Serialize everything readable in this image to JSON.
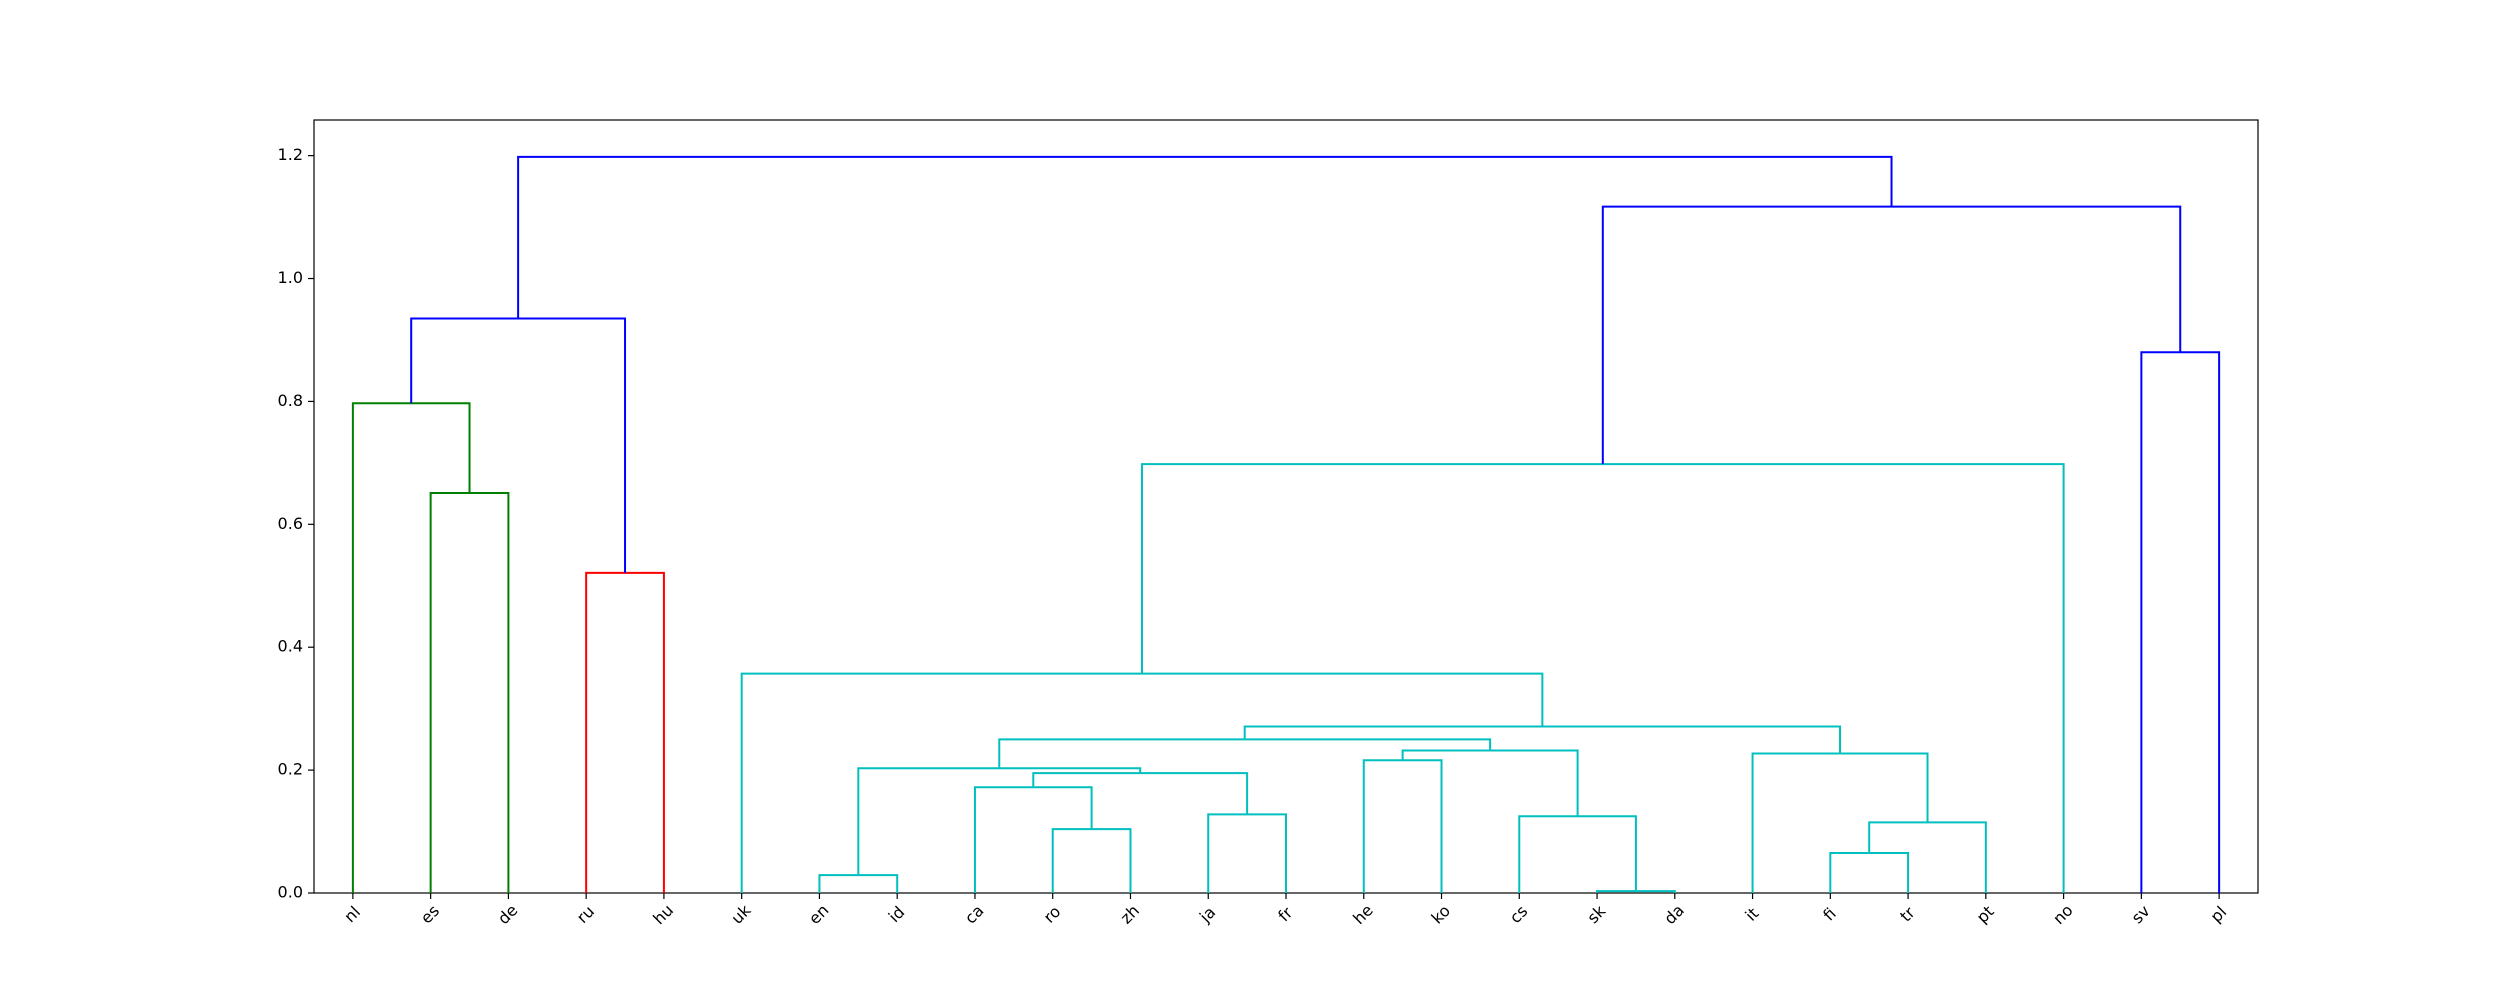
{
  "chart_data": {
    "type": "dendrogram",
    "ylim": [
      0,
      1.258
    ],
    "yticks": [
      {
        "value": 0,
        "label": "0.0"
      },
      {
        "value": 0.2,
        "label": "0.2"
      },
      {
        "value": 0.4,
        "label": "0.4"
      },
      {
        "value": 0.6,
        "label": "0.6"
      },
      {
        "value": 0.8,
        "label": "0.8"
      },
      {
        "value": 1.0,
        "label": "1.0"
      },
      {
        "value": 1.2,
        "label": "1.2"
      }
    ],
    "tree": {
      "height": 1.198,
      "color": "#0000ff",
      "children": [
        {
          "height": 0.935,
          "color": "#0000ff",
          "children": [
            {
              "height": 0.797,
              "color": "#008000",
              "children": [
                "nl",
                {
                  "height": 0.651,
                  "color": "#008000",
                  "children": [
                    "es",
                    "de"
                  ]
                }
              ]
            },
            {
              "height": 0.521,
              "color": "#ff0000",
              "children": [
                "ru",
                "hu"
              ]
            }
          ]
        },
        {
          "height": 1.117,
          "color": "#0000ff",
          "children": [
            {
              "height": 0.698,
              "color": "#00bfbf",
              "children": [
                {
                  "height": 0.357,
                  "color": "#00bfbf",
                  "children": [
                    "uk",
                    {
                      "height": 0.271,
                      "color": "#00bfbf",
                      "children": [
                        {
                          "height": 0.25,
                          "color": "#00bfbf",
                          "children": [
                            {
                              "height": 0.203,
                              "color": "#00bfbf",
                              "children": [
                                {
                                  "height": 0.029,
                                  "color": "#00bfbf",
                                  "children": [
                                    "en",
                                    "id"
                                  ]
                                },
                                {
                                  "height": 0.195,
                                  "color": "#00bfbf",
                                  "children": [
                                    {
                                      "height": 0.172,
                                      "color": "#00bfbf",
                                      "children": [
                                        "ca",
                                        {
                                          "height": 0.104,
                                          "color": "#00bfbf",
                                          "children": [
                                            "ro",
                                            "zh"
                                          ]
                                        }
                                      ]
                                    },
                                    {
                                      "height": 0.128,
                                      "color": "#00bfbf",
                                      "children": [
                                        "ja",
                                        "fr"
                                      ]
                                    }
                                  ]
                                }
                              ]
                            },
                            {
                              "height": 0.232,
                              "color": "#00bfbf",
                              "children": [
                                {
                                  "height": 0.216,
                                  "color": "#00bfbf",
                                  "children": [
                                    "he",
                                    "ko"
                                  ]
                                },
                                {
                                  "height": 0.125,
                                  "color": "#00bfbf",
                                  "children": [
                                    "cs",
                                    {
                                      "height": 0.003,
                                      "color": "#00bfbf",
                                      "children": [
                                        "sk",
                                        "da"
                                      ]
                                    }
                                  ]
                                }
                              ]
                            }
                          ]
                        },
                        {
                          "height": 0.227,
                          "color": "#00bfbf",
                          "children": [
                            "it",
                            {
                              "height": 0.115,
                              "color": "#00bfbf",
                              "children": [
                                {
                                  "height": 0.065,
                                  "color": "#00bfbf",
                                  "children": [
                                    "fi",
                                    "tr"
                                  ]
                                },
                                "pt"
                              ]
                            }
                          ]
                        }
                      ]
                    }
                  ]
                },
                "no"
              ]
            },
            {
              "height": 0.88,
              "color": "#0000ff",
              "children": [
                "sv",
                "pl"
              ]
            }
          ]
        }
      ]
    }
  }
}
